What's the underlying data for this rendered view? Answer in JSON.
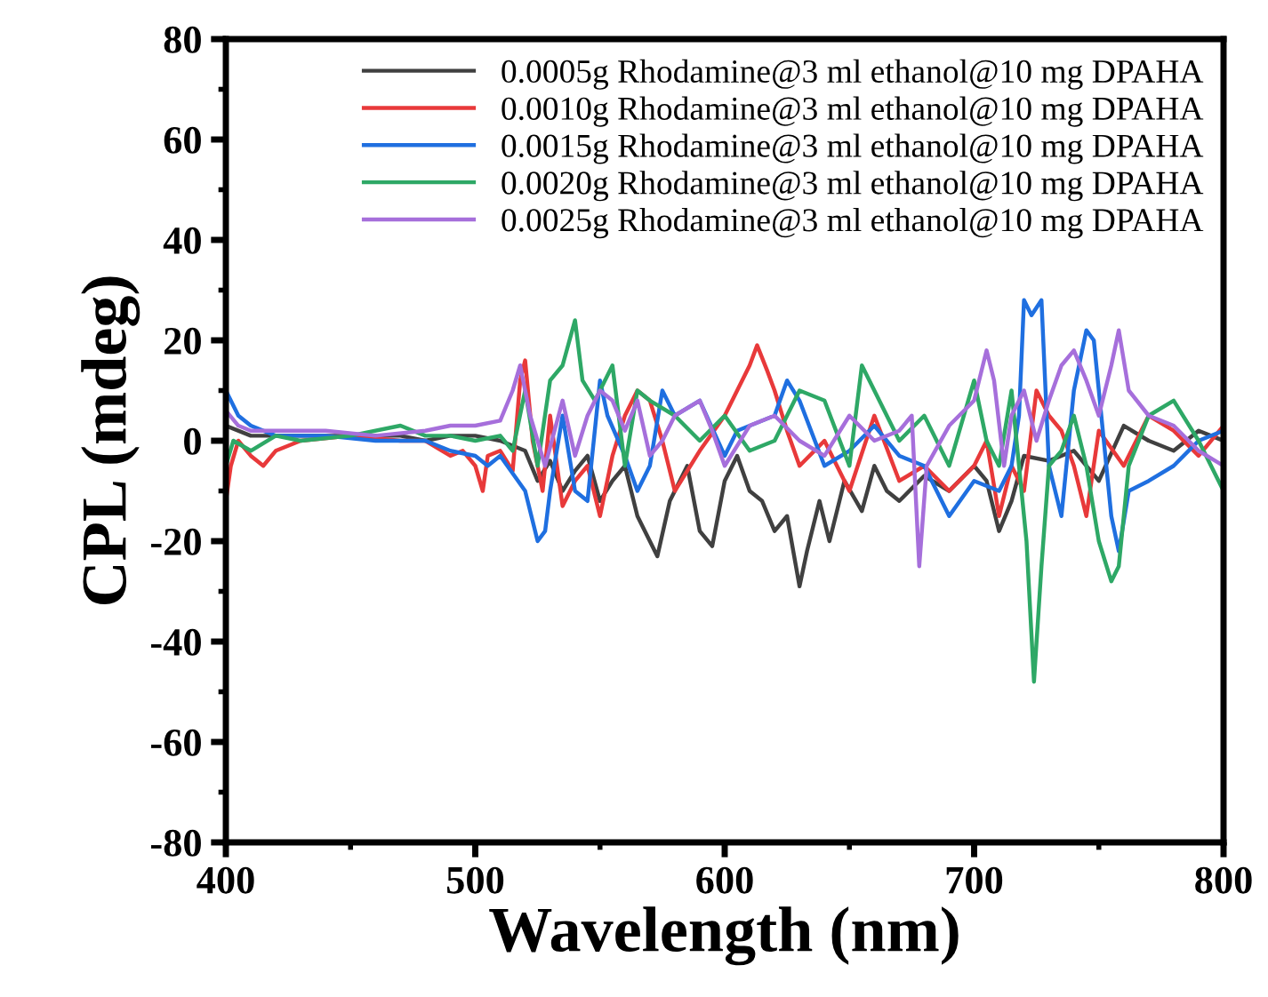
{
  "chart_data": {
    "type": "line",
    "xlabel": "Wavelength (nm)",
    "ylabel": "CPL (mdeg)",
    "xlim": [
      400,
      800
    ],
    "xticks": [
      400,
      500,
      600,
      700,
      800
    ],
    "ylim": [
      -80,
      80
    ],
    "yticks": [
      -80,
      -60,
      -40,
      -20,
      0,
      20,
      40,
      60,
      80
    ],
    "grid": false,
    "legend": "top right",
    "marker": "none",
    "line_style": "solid",
    "series": [
      {
        "name": "0.0005g Rhodamine@3 ml ethanol@10 mg DPAHA",
        "color": "#404040",
        "x": [
          400,
          410,
          420,
          430,
          440,
          450,
          460,
          470,
          480,
          490,
          500,
          510,
          520,
          525,
          530,
          535,
          540,
          545,
          550,
          555,
          560,
          565,
          570,
          573,
          578,
          585,
          590,
          595,
          600,
          605,
          610,
          615,
          620,
          625,
          630,
          633,
          638,
          642,
          648,
          655,
          660,
          665,
          670,
          680,
          690,
          700,
          705,
          710,
          715,
          720,
          730,
          740,
          750,
          760,
          770,
          780,
          790,
          800
        ],
        "values": [
          3,
          1,
          1,
          1,
          1,
          1,
          1,
          1,
          0,
          1,
          1,
          0,
          -2,
          -8,
          -4,
          -10,
          -6,
          -3,
          -12,
          -8,
          -5,
          -15,
          -20,
          -23,
          -12,
          -5,
          -18,
          -21,
          -8,
          -3,
          -10,
          -12,
          -18,
          -15,
          -29,
          -22,
          -12,
          -20,
          -8,
          -14,
          -5,
          -10,
          -12,
          -7,
          -10,
          -5,
          -8,
          -18,
          -12,
          -3,
          -4,
          -2,
          -8,
          3,
          0,
          -2,
          2,
          0
        ]
      },
      {
        "name": "0.0010g Rhodamine@3 ml ethanol@10 mg DPAHA",
        "color": "#e8393a",
        "x": [
          400,
          402,
          405,
          410,
          415,
          420,
          430,
          450,
          470,
          480,
          490,
          495,
          500,
          503,
          505,
          510,
          515,
          518,
          520,
          523,
          527,
          530,
          535,
          540,
          545,
          550,
          555,
          560,
          565,
          570,
          575,
          580,
          590,
          600,
          605,
          610,
          613,
          617,
          620,
          625,
          630,
          640,
          650,
          660,
          670,
          680,
          690,
          700,
          705,
          710,
          715,
          720,
          725,
          730,
          735,
          740,
          745,
          750,
          760,
          770,
          780,
          790,
          800
        ],
        "values": [
          -12,
          -5,
          0,
          -3,
          -5,
          -2,
          0,
          1,
          0,
          0,
          -3,
          -2,
          -5,
          -10,
          -3,
          -2,
          -6,
          12,
          16,
          0,
          -10,
          5,
          -13,
          -8,
          -5,
          -15,
          -3,
          5,
          10,
          8,
          0,
          -10,
          -2,
          5,
          10,
          15,
          19,
          14,
          10,
          2,
          -5,
          0,
          -10,
          5,
          -8,
          -5,
          -10,
          -5,
          0,
          -15,
          -5,
          -10,
          10,
          5,
          2,
          -5,
          -15,
          2,
          -5,
          5,
          2,
          -3,
          3
        ]
      },
      {
        "name": "0.0015g Rhodamine@3 ml ethanol@10 mg DPAHA",
        "color": "#1f6fe0",
        "x": [
          400,
          405,
          410,
          420,
          440,
          460,
          480,
          490,
          500,
          505,
          510,
          520,
          525,
          528,
          530,
          535,
          540,
          545,
          550,
          553,
          560,
          565,
          570,
          575,
          580,
          590,
          600,
          605,
          620,
          625,
          630,
          640,
          650,
          660,
          670,
          680,
          690,
          700,
          710,
          715,
          718,
          720,
          723,
          727,
          730,
          735,
          740,
          745,
          748,
          752,
          755,
          758,
          762,
          770,
          780,
          790,
          800
        ],
        "values": [
          10,
          5,
          3,
          1,
          1,
          0,
          0,
          -2,
          -3,
          -5,
          -3,
          -10,
          -20,
          -18,
          -10,
          5,
          -10,
          -12,
          12,
          5,
          -3,
          -10,
          -5,
          10,
          5,
          8,
          -3,
          2,
          5,
          12,
          8,
          -5,
          -2,
          3,
          -3,
          -5,
          -15,
          -8,
          -10,
          -5,
          5,
          28,
          25,
          28,
          -5,
          -15,
          10,
          22,
          20,
          0,
          -15,
          -22,
          -10,
          -8,
          -5,
          0,
          2
        ]
      },
      {
        "name": "0.0020g Rhodamine@3 ml ethanol@10 mg DPAHA",
        "color": "#2ea866",
        "x": [
          400,
          403,
          410,
          420,
          430,
          450,
          470,
          480,
          490,
          500,
          510,
          515,
          520,
          525,
          530,
          535,
          540,
          543,
          548,
          555,
          560,
          565,
          570,
          580,
          590,
          600,
          610,
          620,
          630,
          640,
          650,
          655,
          660,
          670,
          680,
          690,
          700,
          705,
          710,
          715,
          718,
          721,
          724,
          727,
          730,
          735,
          740,
          745,
          750,
          755,
          758,
          762,
          770,
          780,
          790,
          800
        ],
        "values": [
          -5,
          0,
          -2,
          1,
          0,
          1,
          3,
          1,
          1,
          0,
          1,
          -2,
          10,
          -5,
          12,
          15,
          24,
          12,
          8,
          15,
          -5,
          10,
          8,
          5,
          0,
          5,
          -2,
          0,
          10,
          8,
          -5,
          15,
          10,
          0,
          5,
          -5,
          12,
          0,
          -5,
          10,
          -5,
          -20,
          -48,
          -25,
          -5,
          -2,
          5,
          -5,
          -20,
          -28,
          -25,
          -5,
          5,
          8,
          0,
          -10
        ]
      },
      {
        "name": "0.0025g Rhodamine@3 ml ethanol@10 mg DPAHA",
        "color": "#a66fdb",
        "x": [
          400,
          405,
          410,
          430,
          440,
          460,
          480,
          490,
          500,
          510,
          515,
          518,
          522,
          528,
          535,
          540,
          545,
          550,
          555,
          560,
          565,
          570,
          575,
          580,
          590,
          595,
          600,
          610,
          620,
          630,
          640,
          650,
          660,
          670,
          675,
          678,
          681,
          690,
          700,
          705,
          708,
          712,
          715,
          720,
          725,
          730,
          735,
          740,
          745,
          750,
          755,
          758,
          762,
          770,
          780,
          790,
          800
        ],
        "values": [
          6,
          3,
          2,
          2,
          2,
          1,
          2,
          3,
          3,
          4,
          10,
          15,
          5,
          -5,
          8,
          -3,
          5,
          10,
          8,
          2,
          8,
          -3,
          0,
          5,
          8,
          2,
          -5,
          3,
          5,
          0,
          -3,
          5,
          0,
          2,
          5,
          -25,
          -5,
          3,
          8,
          18,
          12,
          -5,
          5,
          10,
          0,
          8,
          15,
          18,
          12,
          5,
          15,
          22,
          10,
          5,
          3,
          -2,
          -5
        ]
      }
    ]
  }
}
